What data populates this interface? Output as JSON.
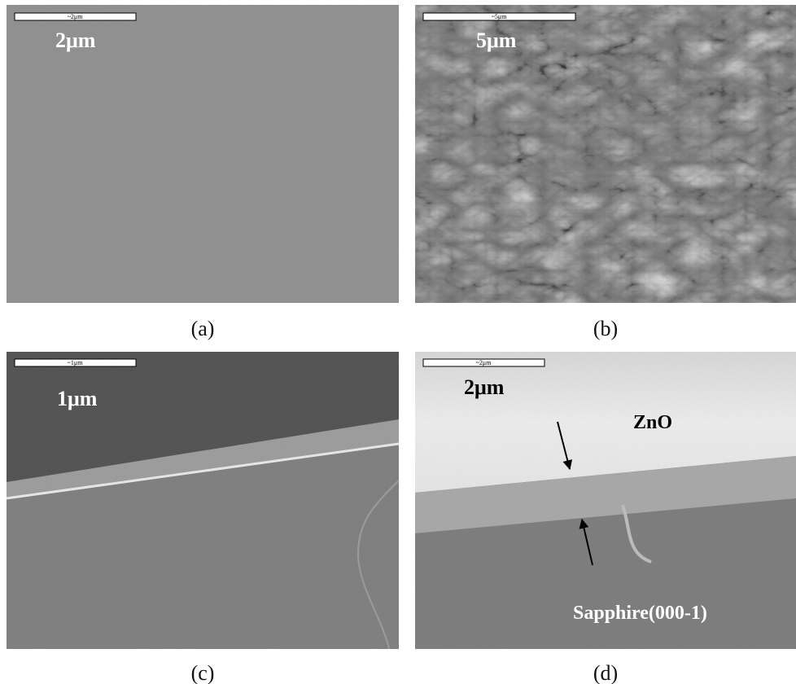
{
  "panels": [
    {
      "caption": "(a)",
      "scale_bar_label": "~2μm",
      "scale_label": "2μm"
    },
    {
      "caption": "(b)",
      "scale_bar_label": "~5μm",
      "scale_label": "5μm"
    },
    {
      "caption": "(c)",
      "scale_bar_label": "~1μm",
      "scale_label": "1μm"
    },
    {
      "caption": "(d)",
      "scale_bar_label": "~2μm",
      "scale_label": "2μm",
      "annotations": [
        "ZnO",
        "Sapphire(000-1)"
      ]
    }
  ]
}
